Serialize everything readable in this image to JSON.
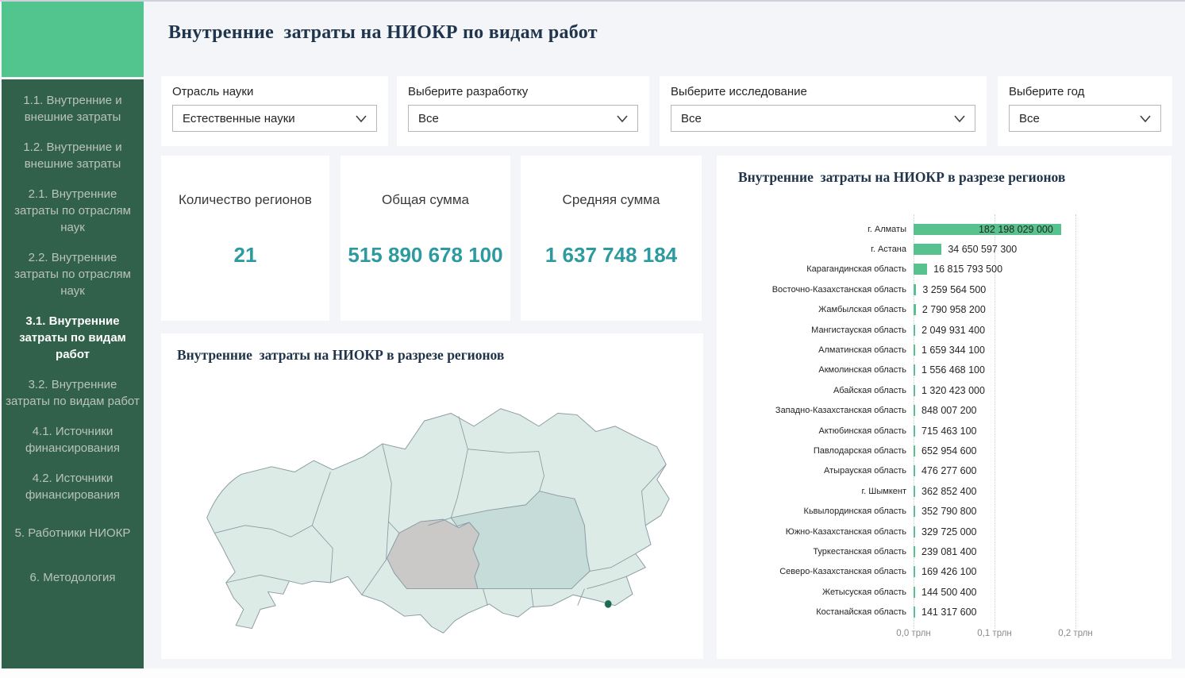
{
  "app": {
    "title": "Внутренние  затраты на НИОКР по видам работ"
  },
  "sidebar": {
    "items": [
      {
        "label": "1.1. Внутренние и внешние затраты",
        "active": false
      },
      {
        "label": "1.2. Внутренние и внешние затраты",
        "active": false
      },
      {
        "label": "2.1. Внутренние затраты по отраслям наук",
        "active": false
      },
      {
        "label": "2.2. Внутренние затраты по отраслям наук",
        "active": false
      },
      {
        "label": "3.1. Внутренние затраты по видам работ",
        "active": true
      },
      {
        "label": "3.2. Внутренние затраты по видам работ",
        "active": false
      },
      {
        "label": "4.1. Источники финансирования",
        "active": false
      },
      {
        "label": "4.2. Источники финансирования",
        "active": false
      },
      {
        "label": "5. Работники НИОКР",
        "active": false
      },
      {
        "label": "6. Методология",
        "active": false
      }
    ]
  },
  "filters": [
    {
      "label": "Отрасль науки",
      "value": "Естественные науки"
    },
    {
      "label": "Выберите разработку",
      "value": "Все"
    },
    {
      "label": "Выберите исследование",
      "value": "Все"
    },
    {
      "label": "Выберите год",
      "value": "Все"
    }
  ],
  "kpis": [
    {
      "label": "Количество регионов",
      "value": "21"
    },
    {
      "label": "Общая сумма",
      "value": "515 890 678 100"
    },
    {
      "label": "Средняя сумма",
      "value": "1 637 748 184"
    }
  ],
  "map_panel": {
    "title": "Внутренние  затраты на НИОКР в разрезе регионов"
  },
  "chart_panel": {
    "title": "Внутренние  затраты на НИОКР в разрезе регионов"
  },
  "chart_data": {
    "type": "bar",
    "orientation": "horizontal",
    "title": "Внутренние  затраты на НИОКР в разрезе регионов",
    "categories": [
      "г. Алматы",
      "г. Астана",
      "Карагандинская область",
      "Восточно-Казахстанская область",
      "Жамбылская область",
      "Мангистауская область",
      "Алматинская область",
      "Акмолинская область",
      "Абайская область",
      "Западно-Казахстанская область",
      "Актюбинская область",
      "Павлодарская область",
      "Атырауская область",
      "г. Шымкент",
      "Кьвылординская область",
      "Южно-Казахстанская область",
      "Туркестанская область",
      "Северо-Казахстанская область",
      "Жетысуская область",
      "Костанайская область"
    ],
    "values": [
      182198029000,
      34650597300,
      16815793500,
      3259564500,
      2790958200,
      2049931400,
      1659344100,
      1556468100,
      1320423000,
      848007200,
      715463100,
      652954600,
      476277600,
      362852400,
      352790800,
      329725000,
      239081400,
      169426100,
      144500400,
      141317600
    ],
    "value_labels": [
      "182 198 029 000",
      "34 650 597 300",
      "16 815 793 500",
      "3 259 564 500",
      "2 790 958 200",
      "2 049 931 400",
      "1 659 344 100",
      "1 556 468 100",
      "1 320 423 000",
      "848 007 200",
      "715 463 100",
      "652 954 600",
      "476 277 600",
      "362 852 400",
      "352 790 800",
      "329 725 000",
      "239 081 400",
      "169 426 100",
      "144 500 400",
      "141 317 600"
    ],
    "x_ticks": [
      "0,0 трлн",
      "0,1 трлн",
      "0,2 трлн"
    ],
    "x_tick_values": [
      0,
      100000000000,
      200000000000
    ],
    "xlim": [
      0,
      200000000000
    ],
    "grid": "dotted-vertical",
    "legend": "none"
  },
  "colors": {
    "page_bg": "#f3f5f9",
    "card_bg": "#ffffff",
    "accent_teal": "#2d9aa0",
    "bar_green": "#57c28e",
    "logo_green": "#52c48d",
    "sidebar_green": "#32614b",
    "nav_text": "#b9c3bb",
    "title_text": "#20344b",
    "map_region": "#dcebe6",
    "map_region_dark": "#c6dcd8",
    "map_region_gray": "#cbc8c8",
    "map_border": "#8b9aa3",
    "map_city_dot": "#1a6b50"
  }
}
